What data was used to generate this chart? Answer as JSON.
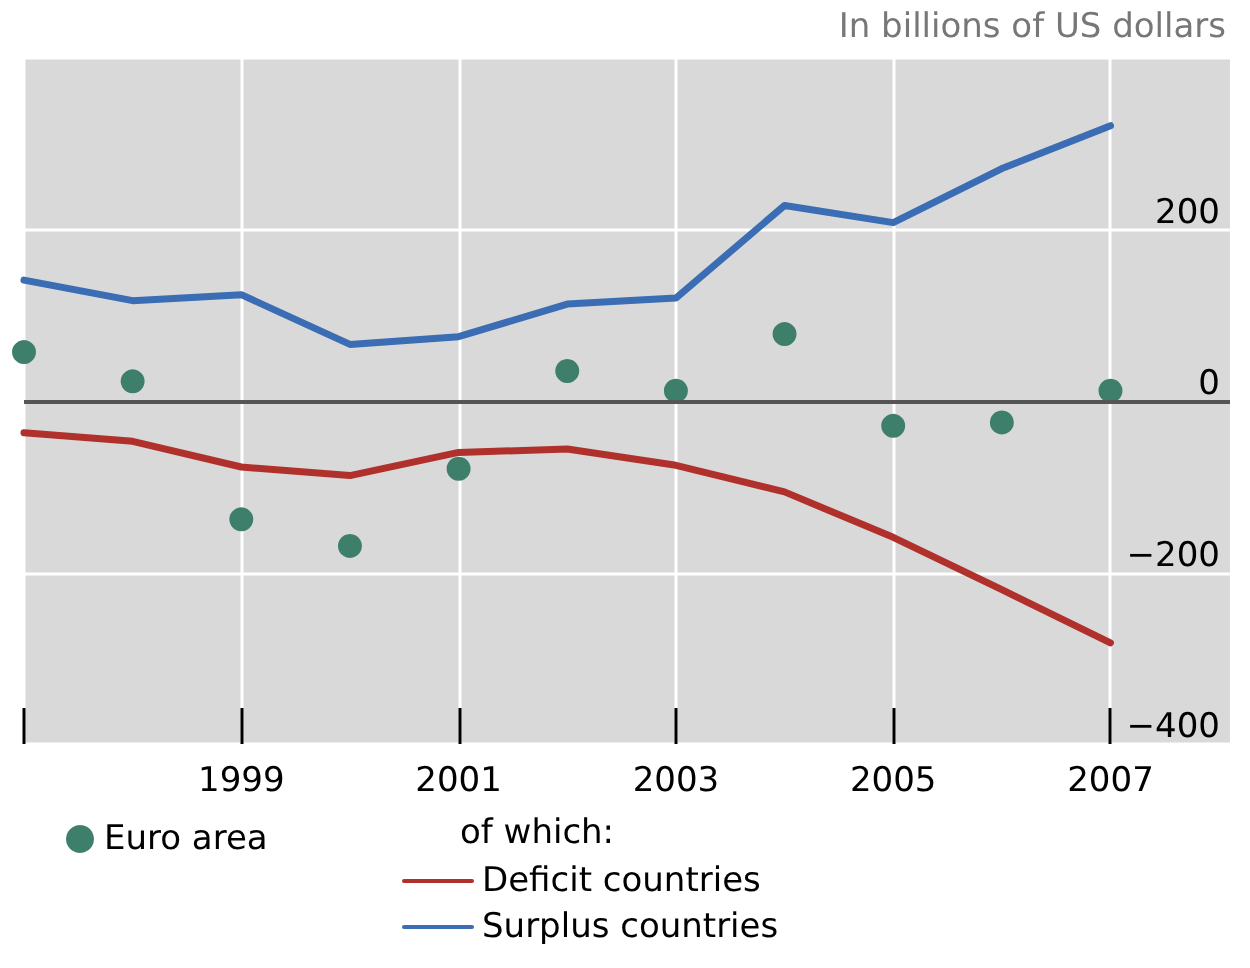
{
  "chart_data": {
    "type": "line",
    "ylabel": "In billions of US dollars",
    "x": [
      1997,
      1998,
      1999,
      2000,
      2001,
      2002,
      2003,
      2004,
      2005,
      2006,
      2007
    ],
    "xlim": [
      1997,
      2008.1
    ],
    "xticks": [
      {
        "value": 1997,
        "label": null
      },
      1999,
      2001,
      2003,
      2005,
      2007
    ],
    "ylim": [
      -400,
      400
    ],
    "yticks": [
      {
        "value": -400,
        "label": "−400"
      },
      {
        "value": -200,
        "label": "−200"
      },
      0,
      200,
      {
        "value": 400,
        "label": null
      }
    ],
    "series": [
      {
        "name": "Euro area",
        "type": "scatter",
        "marker": "circle",
        "color": "#3e7f6b",
        "values": [
          57,
          23,
          -138,
          -169,
          -79,
          35,
          12,
          78,
          -29,
          -25,
          12
        ]
      },
      {
        "name": "Deficit countries",
        "color": "#b0312c",
        "values": [
          -37,
          -47,
          -77,
          -87,
          -60,
          -56,
          -75,
          -106,
          -159,
          -220,
          -282
        ]
      },
      {
        "name": "Surplus countries",
        "color": "#3a6db4",
        "values": [
          141,
          117,
          124,
          66,
          75,
          113,
          120,
          228,
          208,
          271,
          321
        ]
      }
    ],
    "annotations": [
      "of which:"
    ],
    "ref_lines": [
      {
        "axis": "y",
        "value": 0,
        "color": "#555555"
      }
    ],
    "grid": true,
    "legend": "bottom"
  }
}
